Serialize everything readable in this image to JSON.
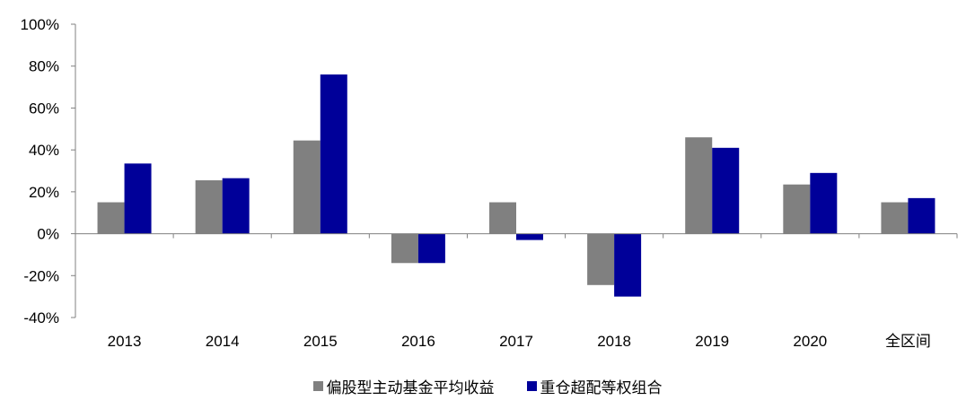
{
  "chart_data": {
    "type": "bar",
    "categories": [
      "2013",
      "2014",
      "2015",
      "2016",
      "2017",
      "2018",
      "2019",
      "2020",
      "全区间"
    ],
    "series": [
      {
        "name": "偏股型主动基金平均收益",
        "color": "#808080",
        "values": [
          15,
          25.5,
          44.5,
          -14,
          15,
          -24.5,
          46,
          23.5,
          15
        ]
      },
      {
        "name": "重仓超配等权组合",
        "color": "#000099",
        "values": [
          33.5,
          26.5,
          76,
          -14,
          -3,
          -30,
          41,
          29,
          17
        ]
      }
    ],
    "ylim": [
      -40,
      100
    ],
    "yticks": [
      -40,
      -20,
      0,
      20,
      40,
      60,
      80,
      100
    ],
    "ytick_labels": [
      "-40%",
      "-20%",
      "0%",
      "20%",
      "40%",
      "60%",
      "80%",
      "100%"
    ],
    "grid": false,
    "legend_position": "bottom"
  }
}
